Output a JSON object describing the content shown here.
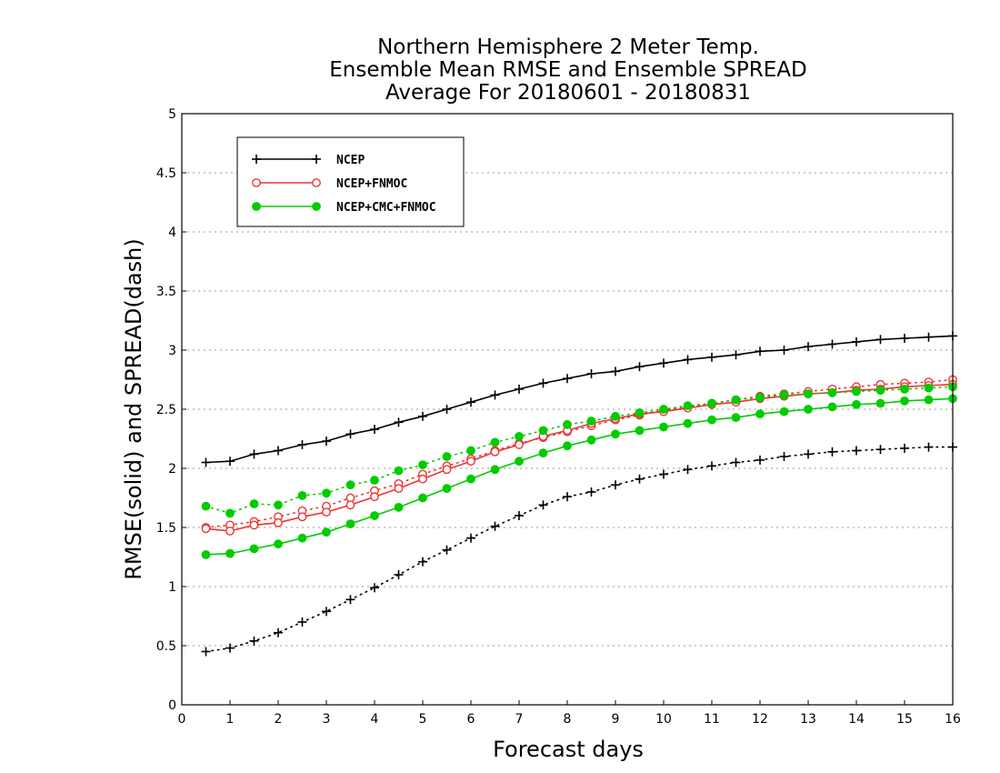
{
  "chart_data": {
    "type": "line",
    "title": [
      "Northern Hemisphere 2 Meter Temp.",
      "Ensemble Mean RMSE and Ensemble SPREAD",
      "Average For 20180601 - 20180831"
    ],
    "xlabel": "Forecast days",
    "ylabel": "RMSE(solid) and SPREAD(dash)",
    "xlim": [
      0,
      16
    ],
    "ylim": [
      0,
      5
    ],
    "xticks": [
      "0",
      "1",
      "2",
      "3",
      "4",
      "5",
      "6",
      "7",
      "8",
      "9",
      "10",
      "11",
      "12",
      "13",
      "14",
      "15",
      "16"
    ],
    "yticks": [
      "0",
      "0.5",
      "1",
      "1.5",
      "2",
      "2.5",
      "3",
      "3.5",
      "4",
      "4.5",
      "5"
    ],
    "grid": true,
    "legend_position": "top-left",
    "x": [
      0.5,
      1,
      1.5,
      2,
      2.5,
      3,
      3.5,
      4,
      4.5,
      5,
      5.5,
      6,
      6.5,
      7,
      7.5,
      8,
      8.5,
      9,
      9.5,
      10,
      10.5,
      11,
      11.5,
      12,
      12.5,
      13,
      13.5,
      14,
      14.5,
      15,
      15.5,
      16
    ],
    "series": [
      {
        "name": "NCEP",
        "color": "#000000",
        "marker": "plus",
        "rmse": [
          2.05,
          2.06,
          2.12,
          2.15,
          2.2,
          2.23,
          2.29,
          2.33,
          2.39,
          2.44,
          2.5,
          2.56,
          2.62,
          2.67,
          2.72,
          2.76,
          2.8,
          2.82,
          2.86,
          2.89,
          2.92,
          2.94,
          2.96,
          2.99,
          3.0,
          3.03,
          3.05,
          3.07,
          3.09,
          3.1,
          3.11,
          3.12
        ],
        "spread": [
          0.45,
          0.48,
          0.54,
          0.61,
          0.7,
          0.79,
          0.89,
          0.99,
          1.1,
          1.21,
          1.31,
          1.41,
          1.51,
          1.6,
          1.69,
          1.76,
          1.8,
          1.86,
          1.91,
          1.95,
          1.99,
          2.02,
          2.05,
          2.07,
          2.1,
          2.12,
          2.14,
          2.15,
          2.16,
          2.17,
          2.18,
          2.18
        ]
      },
      {
        "name": "NCEP+FNMOC",
        "color": "#ee3333",
        "marker": "open-circle",
        "rmse": [
          1.49,
          1.47,
          1.52,
          1.54,
          1.59,
          1.63,
          1.69,
          1.76,
          1.83,
          1.91,
          1.99,
          2.06,
          2.14,
          2.2,
          2.27,
          2.32,
          2.38,
          2.42,
          2.46,
          2.48,
          2.51,
          2.54,
          2.56,
          2.59,
          2.61,
          2.63,
          2.64,
          2.66,
          2.67,
          2.69,
          2.7,
          2.71
        ],
        "spread": [
          1.5,
          1.52,
          1.55,
          1.59,
          1.64,
          1.68,
          1.75,
          1.81,
          1.87,
          1.95,
          2.02,
          2.08,
          2.15,
          2.21,
          2.26,
          2.31,
          2.36,
          2.41,
          2.45,
          2.49,
          2.52,
          2.55,
          2.58,
          2.61,
          2.63,
          2.65,
          2.67,
          2.69,
          2.71,
          2.72,
          2.73,
          2.75
        ]
      },
      {
        "name": "NCEP+CMC+FNMOC",
        "color": "#00cc00",
        "marker": "filled-circle",
        "rmse": [
          1.27,
          1.28,
          1.32,
          1.36,
          1.41,
          1.46,
          1.53,
          1.6,
          1.67,
          1.75,
          1.83,
          1.91,
          1.99,
          2.06,
          2.13,
          2.19,
          2.24,
          2.29,
          2.32,
          2.35,
          2.38,
          2.41,
          2.43,
          2.46,
          2.48,
          2.5,
          2.52,
          2.54,
          2.55,
          2.57,
          2.58,
          2.59
        ],
        "spread": [
          1.68,
          1.62,
          1.7,
          1.69,
          1.77,
          1.79,
          1.86,
          1.9,
          1.98,
          2.03,
          2.1,
          2.15,
          2.22,
          2.27,
          2.32,
          2.37,
          2.4,
          2.44,
          2.47,
          2.5,
          2.53,
          2.55,
          2.58,
          2.6,
          2.62,
          2.63,
          2.64,
          2.65,
          2.66,
          2.67,
          2.68,
          2.69
        ]
      }
    ]
  }
}
